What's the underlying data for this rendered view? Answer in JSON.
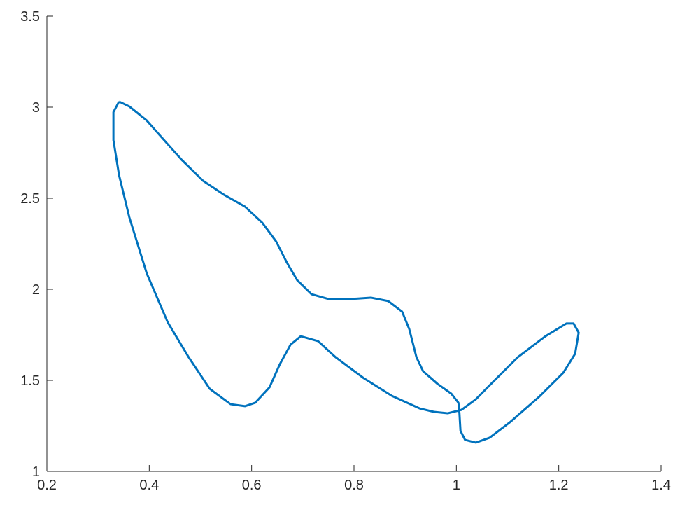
{
  "chart_data": {
    "type": "line",
    "color": "#0072bd",
    "x": [
      0.341,
      0.361,
      0.395,
      0.429,
      0.463,
      0.505,
      0.546,
      0.587,
      0.621,
      0.648,
      0.669,
      0.689,
      0.717,
      0.751,
      0.792,
      0.833,
      0.867,
      0.894,
      0.908,
      0.922,
      0.935,
      0.963,
      0.99,
      1.004,
      1.006,
      1.008,
      1.017,
      1.038,
      1.065,
      1.106,
      1.161,
      1.209,
      1.232,
      1.239,
      1.229,
      1.215,
      1.174,
      1.12,
      1.065,
      1.038,
      1.01,
      0.983,
      0.956,
      0.928,
      0.874,
      0.819,
      0.764,
      0.73,
      0.696,
      0.676,
      0.655,
      0.635,
      0.607,
      0.587,
      0.559,
      0.518,
      0.477,
      0.436,
      0.395,
      0.361,
      0.341,
      0.33,
      0.33,
      0.341
    ],
    "values": [
      3.031,
      3.004,
      2.927,
      2.819,
      2.712,
      2.596,
      2.519,
      2.454,
      2.365,
      2.262,
      2.146,
      2.05,
      1.973,
      1.946,
      1.946,
      1.954,
      1.935,
      1.877,
      1.781,
      1.627,
      1.55,
      1.481,
      1.427,
      1.377,
      1.319,
      1.223,
      1.173,
      1.158,
      1.185,
      1.273,
      1.408,
      1.542,
      1.646,
      1.762,
      1.812,
      1.812,
      1.742,
      1.627,
      1.473,
      1.396,
      1.338,
      1.319,
      1.327,
      1.346,
      1.415,
      1.512,
      1.627,
      1.715,
      1.742,
      1.696,
      1.588,
      1.462,
      1.377,
      1.358,
      1.369,
      1.454,
      1.627,
      1.819,
      2.088,
      2.396,
      2.627,
      2.819,
      2.973,
      3.031
    ],
    "xlim": [
      0.2,
      1.4
    ],
    "xticks": [
      0.2,
      0.4,
      0.6,
      0.8,
      1,
      1.2,
      1.4
    ],
    "ylim": [
      1,
      3.5
    ],
    "yticks": [
      1,
      1.5,
      2,
      2.5,
      3,
      3.5
    ]
  }
}
